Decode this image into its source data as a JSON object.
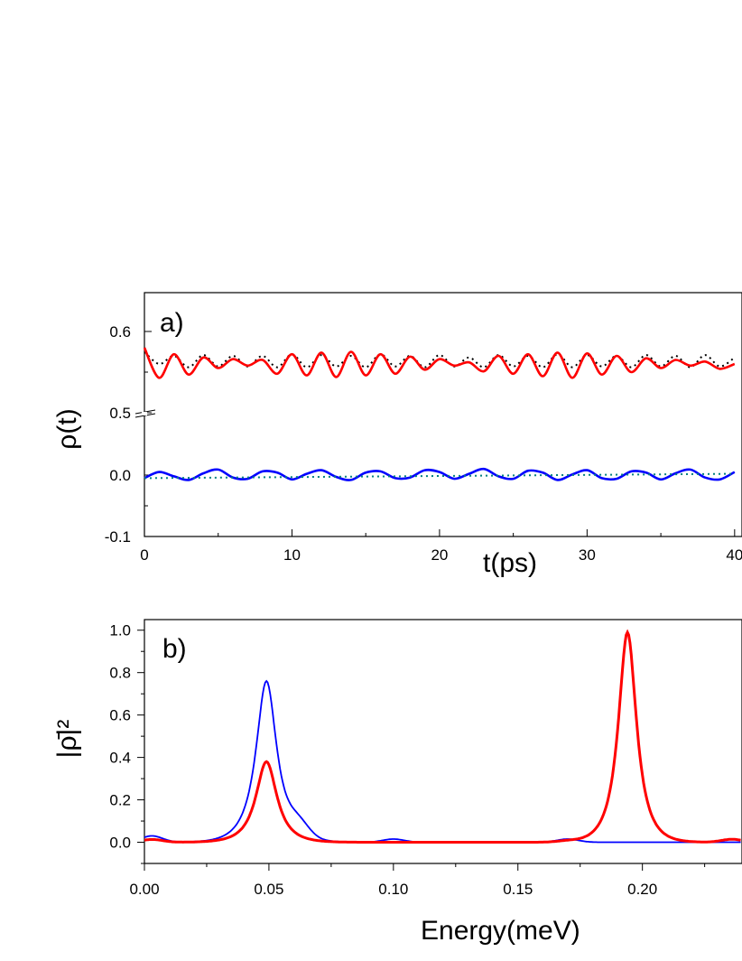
{
  "chart_data": [
    {
      "type": "line",
      "panel_label": "a)",
      "xlabel": "t(ps)",
      "ylabel": "ρ(t)",
      "xlim": [
        0,
        40
      ],
      "x_ticks": [
        "0",
        "10",
        "20",
        "30",
        "40"
      ],
      "y_ticks": [
        "0.6",
        "0.5",
        "0.0",
        "-0.1"
      ],
      "y_axis_break": "0.5 / 0.0",
      "grid": false,
      "series": [
        {
          "color": "#000000",
          "style": "dotted",
          "x": [
            0,
            1,
            2,
            3,
            4,
            5,
            6,
            7,
            8,
            9,
            10,
            11,
            12,
            13,
            14,
            15,
            16,
            17,
            18,
            19,
            20,
            21,
            22,
            23,
            24,
            25,
            26,
            27,
            28,
            29,
            30,
            31,
            32,
            33,
            34,
            35,
            36,
            37,
            38,
            39,
            40
          ],
          "y": [
            0.575,
            0.56,
            0.57,
            0.556,
            0.571,
            0.557,
            0.57,
            0.557,
            0.57,
            0.556,
            0.572,
            0.556,
            0.571,
            0.557,
            0.57,
            0.556,
            0.572,
            0.557,
            0.57,
            0.556,
            0.571,
            0.557,
            0.568,
            0.556,
            0.571,
            0.557,
            0.57,
            0.556,
            0.572,
            0.556,
            0.571,
            0.557,
            0.57,
            0.556,
            0.571,
            0.557,
            0.57,
            0.556,
            0.571,
            0.557,
            0.568
          ]
        },
        {
          "color": "#ff0000",
          "style": "solid",
          "x": [
            0,
            1,
            2,
            3,
            4,
            5,
            6,
            7,
            8,
            9,
            10,
            11,
            12,
            13,
            14,
            15,
            16,
            17,
            18,
            19,
            20,
            21,
            22,
            23,
            24,
            25,
            26,
            27,
            28,
            29,
            30,
            31,
            32,
            33,
            34,
            35,
            36,
            37,
            38,
            39,
            40
          ],
          "y": [
            0.58,
            0.543,
            0.572,
            0.547,
            0.568,
            0.555,
            0.566,
            0.558,
            0.565,
            0.548,
            0.572,
            0.546,
            0.574,
            0.544,
            0.575,
            0.546,
            0.572,
            0.548,
            0.569,
            0.553,
            0.566,
            0.558,
            0.562,
            0.551,
            0.57,
            0.548,
            0.572,
            0.545,
            0.574,
            0.543,
            0.573,
            0.547,
            0.57,
            0.55,
            0.567,
            0.555,
            0.565,
            0.558,
            0.563,
            0.554,
            0.56
          ]
        },
        {
          "color": "#0000ff",
          "style": "solid",
          "x": [
            0,
            1,
            2,
            3,
            4,
            5,
            6,
            7,
            8,
            9,
            10,
            11,
            12,
            13,
            14,
            15,
            16,
            17,
            18,
            19,
            20,
            21,
            22,
            23,
            24,
            25,
            26,
            27,
            28,
            29,
            30,
            31,
            32,
            33,
            34,
            35,
            36,
            37,
            38,
            39,
            40
          ],
          "y": [
            -0.005,
            0.005,
            -0.002,
            -0.008,
            0.003,
            0.009,
            -0.004,
            -0.006,
            0.006,
            0.004,
            -0.007,
            0.002,
            0.008,
            -0.003,
            -0.008,
            0.004,
            0.006,
            -0.005,
            -0.004,
            0.008,
            0.005,
            -0.006,
            0.002,
            0.01,
            -0.002,
            -0.006,
            0.007,
            0.004,
            -0.008,
            0.001,
            0.008,
            -0.005,
            -0.006,
            0.006,
            0.004,
            -0.007,
            0.003,
            0.009,
            -0.004,
            -0.007,
            0.005
          ]
        },
        {
          "color": "#008080",
          "style": "dotted",
          "x": [
            0,
            40
          ],
          "y": [
            -0.005,
            0.002
          ]
        }
      ]
    },
    {
      "type": "line",
      "panel_label": "b)",
      "xlabel": "Energy(meV)",
      "ylabel": "|ρ̄|²",
      "xlim": [
        0.0,
        0.24
      ],
      "ylim": [
        -0.1,
        1.05
      ],
      "x_ticks": [
        "0.00",
        "0.05",
        "0.10",
        "0.15",
        "0.20"
      ],
      "y_ticks": [
        "0.0",
        "0.2",
        "0.4",
        "0.6",
        "0.8",
        "1.0"
      ],
      "grid": false,
      "series": [
        {
          "color": "#0000ff",
          "style": "solid",
          "peaks": [
            {
              "center": 0.049,
              "height": 0.76,
              "width": 0.0052
            }
          ],
          "tail": [
            0.03,
            0.06,
            0.015,
            0.015,
            0.0
          ]
        },
        {
          "color": "#ff0000",
          "style": "solid",
          "peaks": [
            {
              "center": 0.049,
              "height": 0.38,
              "width": 0.0052
            },
            {
              "center": 0.194,
              "height": 0.99,
              "width": 0.0045
            }
          ],
          "tail": [
            0.013,
            0.0,
            0.0,
            0.005,
            0.014
          ]
        }
      ]
    }
  ]
}
